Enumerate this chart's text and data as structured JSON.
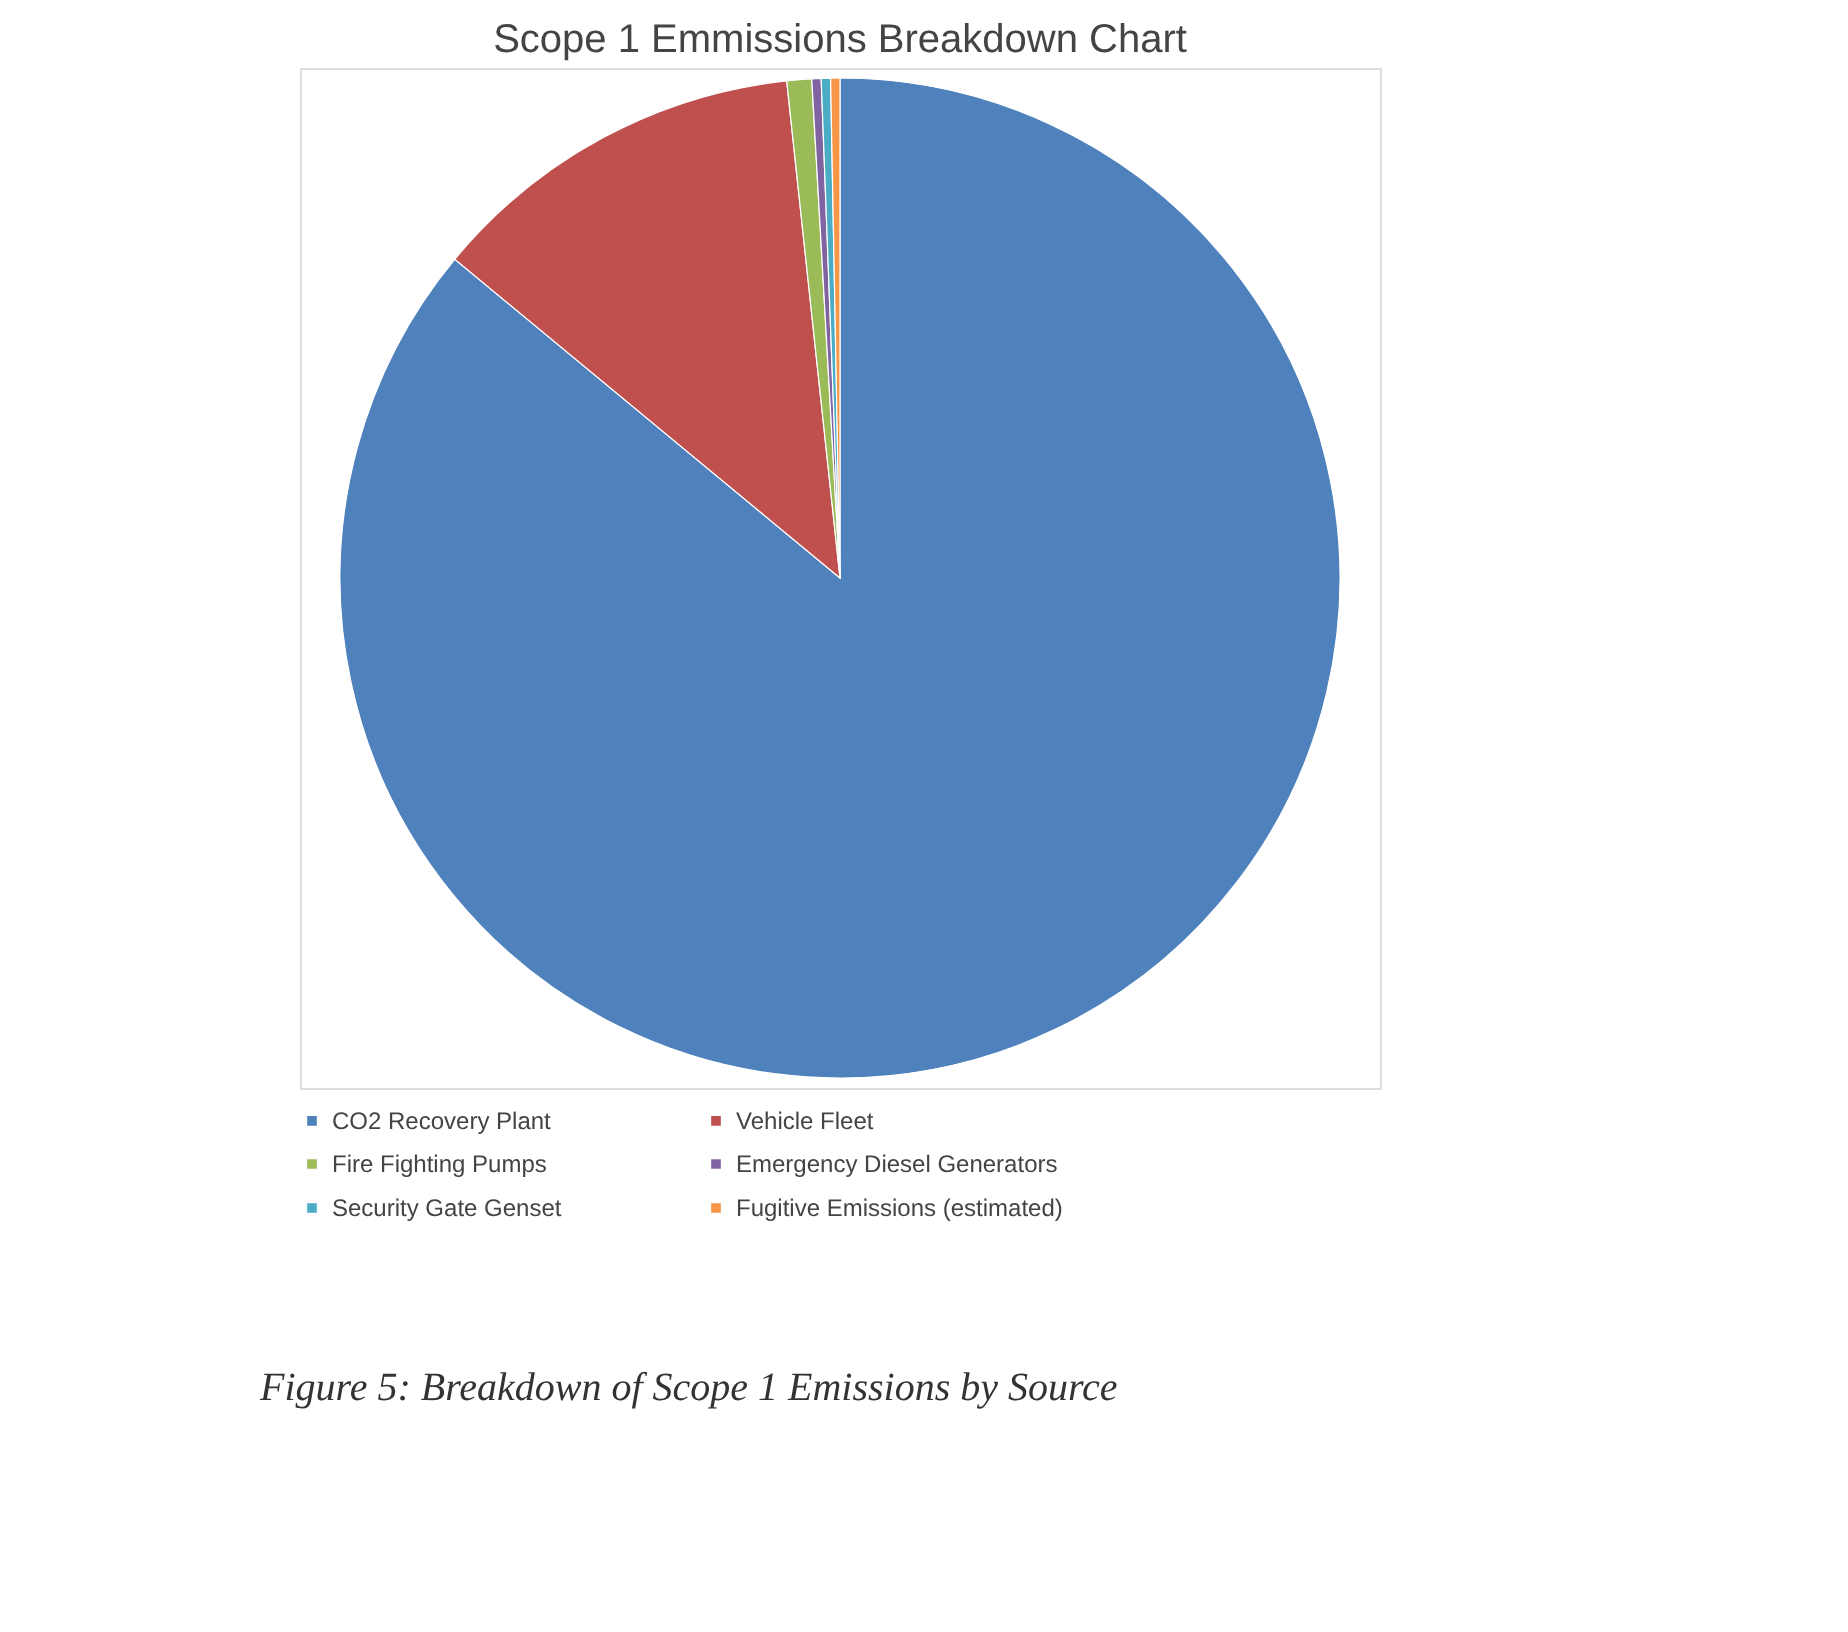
{
  "chart_data": {
    "type": "pie",
    "title": "Scope 1 Emmissions Breakdown Chart",
    "categories": [
      "CO2 Recovery Plant",
      "Vehicle Fleet",
      "Fire Fighting Pumps",
      "Emergency Diesel Generators",
      "Security Gate Genset",
      "Fugitive Emissions (estimated)"
    ],
    "values": [
      86.0,
      12.3,
      0.8,
      0.3,
      0.3,
      0.3
    ],
    "colors": [
      "#4f81bd",
      "#c0504d",
      "#9bbb59",
      "#8064a2",
      "#4bacc6",
      "#f79646"
    ],
    "legend": "bottom",
    "annotations": [
      "Figure 5: Breakdown of Scope 1 Emissions by Source"
    ]
  }
}
